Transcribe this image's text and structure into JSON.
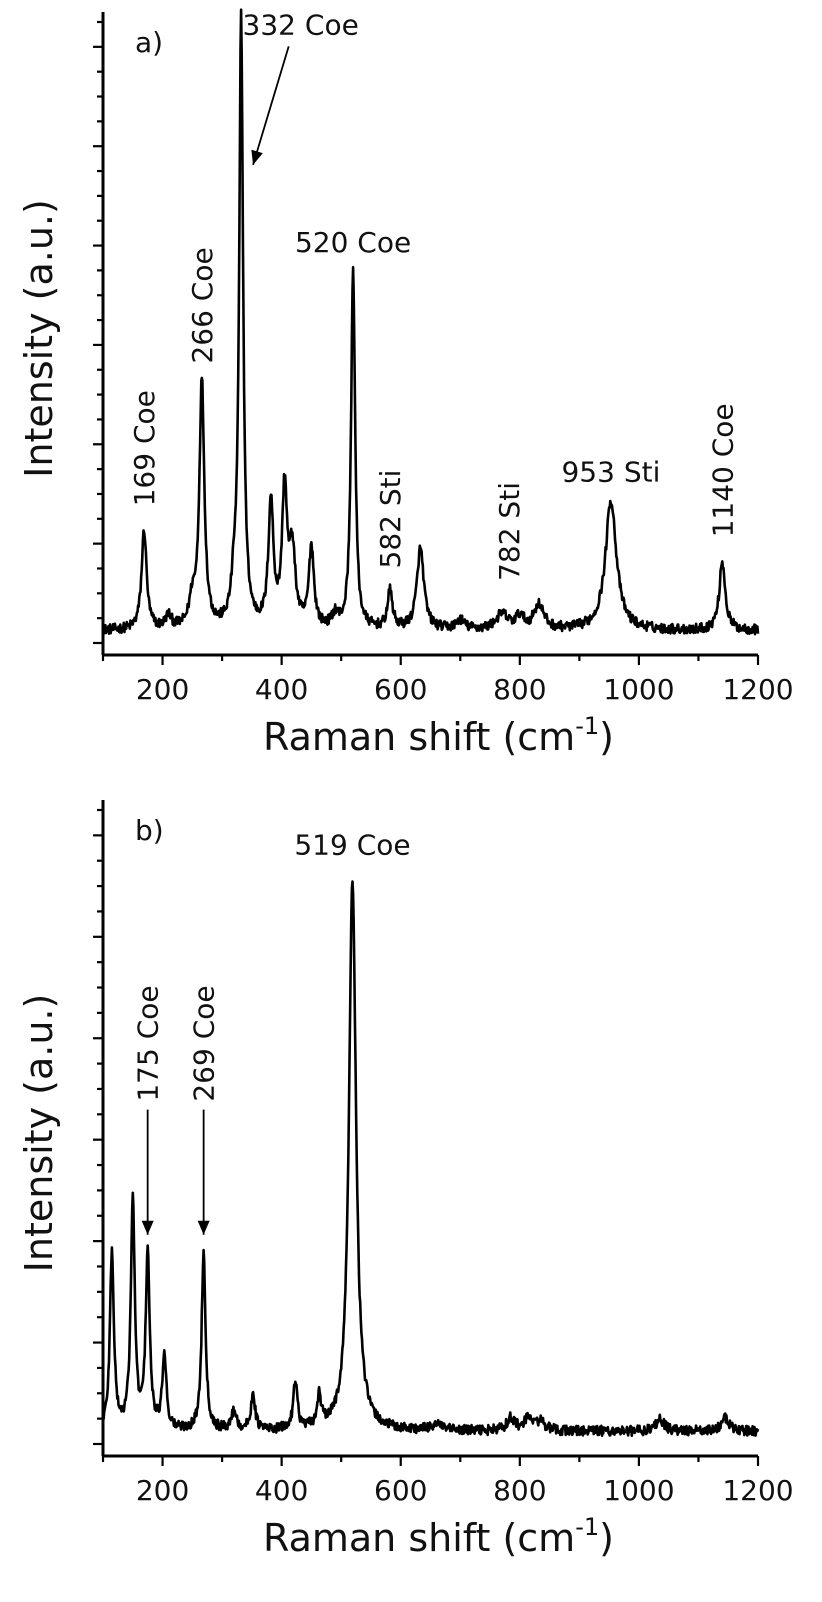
{
  "chart_data": [
    {
      "type": "line",
      "panel_label": "a)",
      "xlabel": "Raman shift (cm",
      "xlabel_sup": "-1",
      "xlabel_close": ")",
      "ylabel": "Intensity (a.u.)",
      "xlim": [
        100,
        1200
      ],
      "ylim": [
        0,
        100
      ],
      "x_ticks": [
        200,
        400,
        600,
        800,
        1000,
        1200
      ],
      "x_tick_labels": [
        "200",
        "400",
        "600",
        "800",
        "1000",
        "1200"
      ],
      "y_minor_ticks": 26,
      "baseline": 2,
      "peaks": [
        {
          "x": 169,
          "height": 16,
          "width": 5
        },
        {
          "x": 210,
          "height": 2,
          "width": 6
        },
        {
          "x": 250,
          "height": 4,
          "width": 6
        },
        {
          "x": 266,
          "height": 40,
          "width": 5
        },
        {
          "x": 320,
          "height": 5,
          "width": 5
        },
        {
          "x": 332,
          "height": 98,
          "width": 4
        },
        {
          "x": 382,
          "height": 20,
          "width": 5
        },
        {
          "x": 405,
          "height": 22,
          "width": 5
        },
        {
          "x": 418,
          "height": 12,
          "width": 6
        },
        {
          "x": 450,
          "height": 13,
          "width": 5
        },
        {
          "x": 490,
          "height": 2,
          "width": 6
        },
        {
          "x": 520,
          "height": 58,
          "width": 4
        },
        {
          "x": 582,
          "height": 6,
          "width": 5
        },
        {
          "x": 633,
          "height": 13,
          "width": 7
        },
        {
          "x": 700,
          "height": 1.5,
          "width": 8
        },
        {
          "x": 770,
          "height": 2.5,
          "width": 12
        },
        {
          "x": 800,
          "height": 2,
          "width": 8
        },
        {
          "x": 832,
          "height": 4,
          "width": 10
        },
        {
          "x": 953,
          "height": 21,
          "width": 11
        },
        {
          "x": 1140,
          "height": 11,
          "width": 6
        }
      ],
      "annotations": [
        {
          "text": "169 Coe",
          "x": 169,
          "y": 22,
          "orientation": "vertical"
        },
        {
          "text": "266 Coe",
          "x": 266,
          "y": 45,
          "orientation": "vertical"
        },
        {
          "text": "520 Coe",
          "x": 520,
          "y": 63,
          "orientation": "horizontal"
        },
        {
          "text": "582 Sti",
          "x": 582,
          "y": 12,
          "orientation": "vertical"
        },
        {
          "text": "782 Sti",
          "x": 782,
          "y": 10,
          "orientation": "vertical"
        },
        {
          "text": "953 Sti",
          "x": 953,
          "y": 26,
          "orientation": "horizontal"
        },
        {
          "text": "1140 Coe",
          "x": 1140,
          "y": 17,
          "orientation": "vertical"
        },
        {
          "text": "332 Coe",
          "x": 432,
          "y": 98,
          "orientation": "horizontal",
          "arrow_to": [
            352,
            77
          ]
        }
      ]
    },
    {
      "type": "line",
      "panel_label": "b)",
      "xlabel": "Raman shift (cm",
      "xlabel_sup": "-1",
      "xlabel_close": ")",
      "ylabel": "Intensity (a.u.)",
      "xlim": [
        100,
        1200
      ],
      "ylim": [
        0,
        100
      ],
      "x_ticks": [
        200,
        400,
        600,
        800,
        1000,
        1200
      ],
      "x_tick_labels": [
        "200",
        "400",
        "600",
        "800",
        "1000",
        "1200"
      ],
      "y_minor_ticks": 26,
      "baseline": 2,
      "peaks": [
        {
          "x": 115,
          "height": 28,
          "width": 4
        },
        {
          "x": 150,
          "height": 36,
          "width": 4
        },
        {
          "x": 175,
          "height": 28,
          "width": 4
        },
        {
          "x": 203,
          "height": 12,
          "width": 4
        },
        {
          "x": 269,
          "height": 28,
          "width": 4
        },
        {
          "x": 320,
          "height": 3,
          "width": 5
        },
        {
          "x": 352,
          "height": 6,
          "width": 4
        },
        {
          "x": 423,
          "height": 8,
          "width": 4
        },
        {
          "x": 463,
          "height": 5,
          "width": 4
        },
        {
          "x": 519,
          "height": 87,
          "width": 7
        },
        {
          "x": 660,
          "height": 1,
          "width": 10
        },
        {
          "x": 785,
          "height": 2,
          "width": 8
        },
        {
          "x": 815,
          "height": 2,
          "width": 8
        },
        {
          "x": 835,
          "height": 1.5,
          "width": 8
        },
        {
          "x": 1035,
          "height": 2,
          "width": 8
        },
        {
          "x": 1145,
          "height": 2,
          "width": 8
        }
      ],
      "annotations": [
        {
          "text": "519 Coe",
          "x": 519,
          "y": 93,
          "orientation": "horizontal"
        },
        {
          "text": "175 Coe",
          "x": 175,
          "y": 54,
          "orientation": "vertical",
          "arrow_to": [
            175,
            33
          ]
        },
        {
          "text": "269 Coe",
          "x": 269,
          "y": 54,
          "orientation": "vertical",
          "arrow_to": [
            269,
            33
          ]
        }
      ]
    }
  ]
}
